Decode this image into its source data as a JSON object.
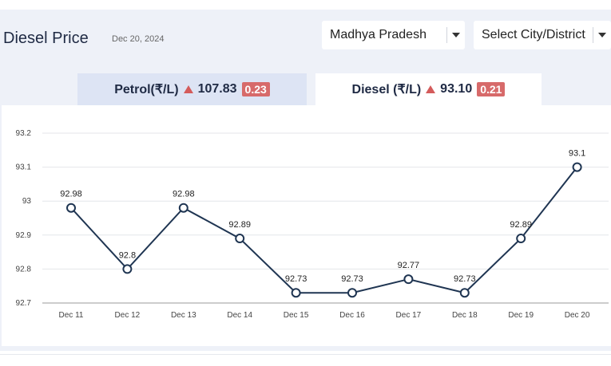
{
  "header": {
    "title": "Diesel Price",
    "date": "Dec 20, 2024"
  },
  "filters": {
    "state": "Madhya Pradesh",
    "city_placeholder": "Select City/District"
  },
  "tabs": [
    {
      "label": "Petrol(₹/L)",
      "price": "107.83",
      "change": "0.23",
      "trend": "up"
    },
    {
      "label": "Diesel (₹/L)",
      "price": "93.10",
      "change": "0.21",
      "trend": "up"
    }
  ],
  "colors": {
    "line": "#1f3552",
    "trend_up": "#d45b5b",
    "active_tab": "#ffffff",
    "inactive_tab": "#dde4f4"
  },
  "chart_data": {
    "type": "line",
    "categories": [
      "Dec 11",
      "Dec 12",
      "Dec 13",
      "Dec 14",
      "Dec 15",
      "Dec 16",
      "Dec 17",
      "Dec 18",
      "Dec 19",
      "Dec 20"
    ],
    "values": [
      92.98,
      92.8,
      92.98,
      92.89,
      92.73,
      92.73,
      92.77,
      92.73,
      92.89,
      93.1
    ],
    "value_labels": [
      "92.98",
      "92.8",
      "92.98",
      "92.89",
      "92.73",
      "92.73",
      "92.77",
      "92.73",
      "92.89",
      "93.1"
    ],
    "yticks": [
      92.7,
      92.8,
      92.9,
      93,
      93.1,
      93.2
    ],
    "ytick_labels": [
      "92.7",
      "92.8",
      "92.9",
      "93",
      "93.1",
      "93.2"
    ],
    "ylim": [
      92.7,
      93.2
    ],
    "grid": true,
    "title": "",
    "xlabel": "",
    "ylabel": ""
  }
}
